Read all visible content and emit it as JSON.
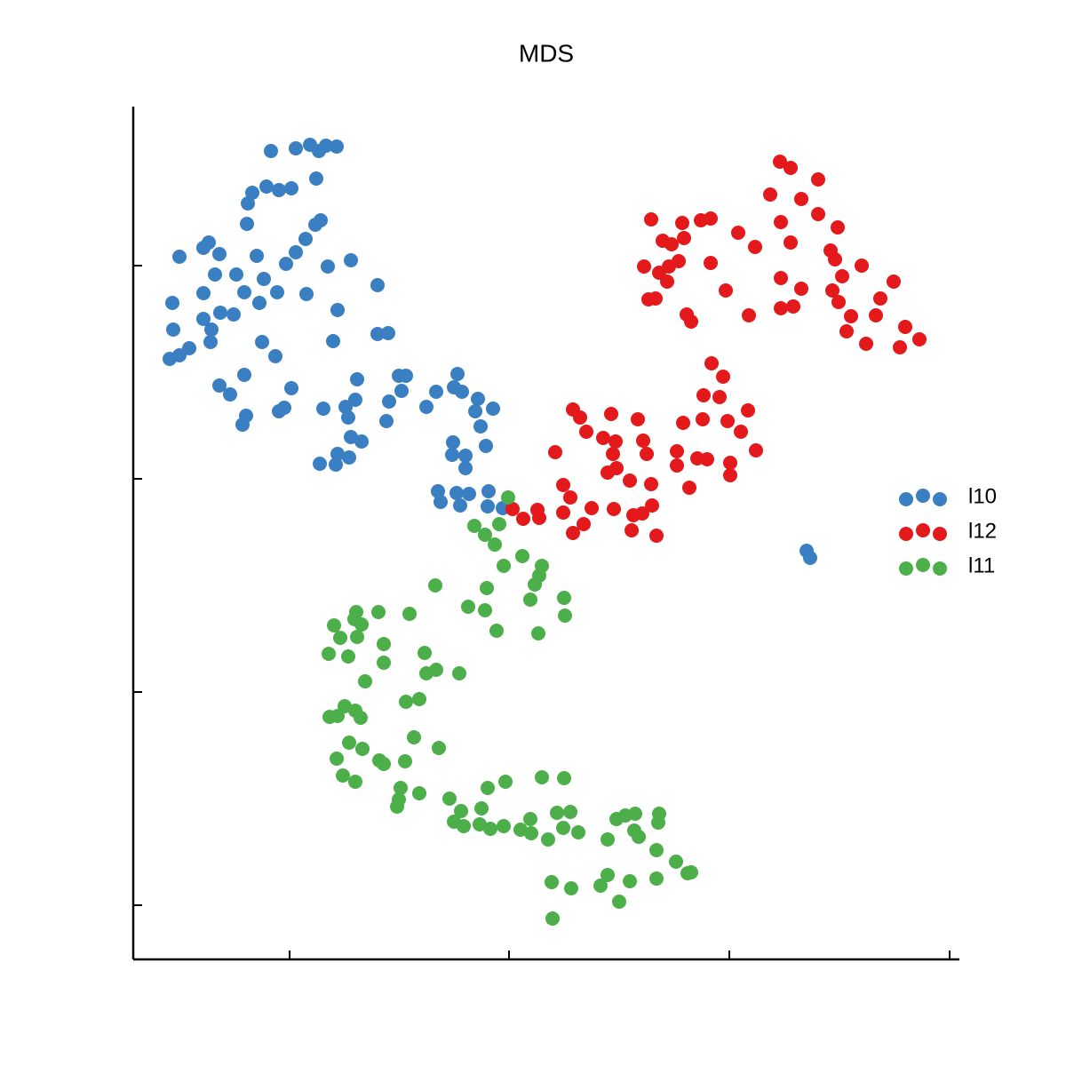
{
  "chart_data": {
    "type": "scatter",
    "title": "MDS",
    "xlim": [
      150,
      1080
    ],
    "ylim": [
      120,
      1080
    ],
    "xticks": [
      326,
      573,
      821,
      1069
    ],
    "yticks": [
      181,
      421,
      661,
      901
    ],
    "legend": "right",
    "series": [
      {
        "name": "l10",
        "color": "#3a7fc1",
        "x": [
          305,
          333,
          349,
          359,
          367,
          379,
          356,
          284,
          300,
          314,
          328,
          279,
          278,
          361,
          355,
          344,
          333,
          322,
          235,
          229,
          247,
          202,
          289,
          369,
          395,
          242,
          266,
          297,
          229,
          275,
          312,
          345,
          425,
          194,
          292,
          248,
          263,
          229,
          238,
          380,
          195,
          213,
          202,
          191,
          237,
          295,
          310,
          375,
          425,
          437,
          275,
          247,
          259,
          328,
          402,
          449,
          457,
          515,
          452,
          491,
          511,
          520,
          538,
          400,
          389,
          364,
          438,
          480,
          535,
          555,
          277,
          273,
          320,
          314,
          392,
          435,
          541,
          395,
          407,
          510,
          547,
          380,
          393,
          360,
          378,
          509,
          524,
          524,
          493,
          514,
          528,
          550,
          496,
          518,
          549,
          566,
          908,
          912
        ],
        "values": [
          1030,
          1033,
          1037,
          1030,
          1036,
          1035,
          999,
          983,
          990,
          986,
          988,
          971,
          948,
          952,
          947,
          931,
          916,
          903,
          927,
          921,
          914,
          911,
          912,
          900,
          907,
          891,
          891,
          886,
          870,
          871,
          871,
          869,
          879,
          859,
          859,
          848,
          846,
          841,
          829,
          851,
          829,
          808,
          800,
          796,
          815,
          815,
          799,
          816,
          824,
          825,
          778,
          766,
          756,
          763,
          773,
          777,
          777,
          779,
          760,
          759,
          764,
          759,
          751,
          750,
          742,
          740,
          748,
          742,
          737,
          740,
          732,
          722,
          741,
          737,
          730,
          726,
          720,
          708,
          703,
          702,
          698,
          689,
          685,
          678,
          677,
          688,
          687,
          673,
          647,
          645,
          644,
          647,
          635,
          631,
          630,
          628,
          580,
          572
        ]
      },
      {
        "name": "l12",
        "color": "#e3191c",
        "x": [
          878,
          890,
          921,
          867,
          902,
          733,
          768,
          789,
          800,
          921,
          879,
          943,
          831,
          746,
          756,
          770,
          850,
          890,
          935,
          940,
          725,
          742,
          753,
          764,
          800,
          970,
          948,
          1006,
          751,
          879,
          902,
          817,
          937,
          944,
          991,
          730,
          738,
          958,
          986,
          773,
          778,
          843,
          879,
          893,
          1019,
          953,
          975,
          1035,
          1013,
          801,
          814,
          792,
          810,
          819,
          842,
          645,
          653,
          688,
          718,
          660,
          679,
          693,
          724,
          728,
          769,
          791,
          834,
          762,
          851,
          625,
          690,
          785,
          796,
          822,
          762,
          694,
          684,
          709,
          733,
          776,
          822,
          634,
          642,
          589,
          605,
          577,
          607,
          634,
          666,
          691,
          713,
          723,
          734,
          657,
          645,
          711,
          739
        ],
        "values": [
          1018,
          1011,
          998,
          981,
          976,
          953,
          949,
          952,
          954,
          959,
          950,
          944,
          938,
          929,
          925,
          932,
          922,
          927,
          918,
          908,
          900,
          893,
          900,
          906,
          904,
          901,
          889,
          883,
          883,
          887,
          875,
          873,
          873,
          860,
          864,
          863,
          864,
          844,
          845,
          846,
          838,
          845,
          853,
          855,
          832,
          827,
          813,
          818,
          809,
          791,
          776,
          755,
          753,
          726,
          738,
          739,
          730,
          734,
          728,
          714,
          707,
          703,
          704,
          689,
          724,
          728,
          714,
          692,
          693,
          691,
          689,
          684,
          683,
          679,
          676,
          673,
          668,
          659,
          655,
          651,
          665,
          654,
          640,
          616,
          626,
          627,
          617,
          623,
          628,
          627,
          620,
          622,
          631,
          610,
          600,
          603,
          597
        ]
      },
      {
        "name": "l11",
        "color": "#4daf4a",
        "x": [
          572,
          534,
          546,
          562,
          557,
          588,
          610,
          607,
          567,
          602,
          490,
          548,
          635,
          597,
          527,
          546,
          636,
          461,
          426,
          401,
          376,
          399,
          407,
          402,
          383,
          559,
          606,
          432,
          478,
          370,
          392,
          432,
          480,
          491,
          517,
          411,
          457,
          472,
          388,
          400,
          406,
          371,
          380,
          466,
          393,
          408,
          494,
          379,
          427,
          432,
          456,
          386,
          400,
          451,
          472,
          449,
          549,
          569,
          610,
          635,
          447,
          506,
          519,
          542,
          511,
          522,
          540,
          552,
          567,
          597,
          586,
          598,
          627,
          642,
          617,
          634,
          651,
          694,
          704,
          715,
          742,
          741,
          684,
          714,
          719,
          739,
          761,
          774,
          778,
          621,
          643,
          684,
          676,
          709,
          739,
          697,
          622
        ],
        "values": [
          640,
          608,
          598,
          610,
          587,
          574,
          563,
          552,
          563,
          542,
          541,
          538,
          527,
          525,
          517,
          513,
          507,
          509,
          511,
          511,
          496,
          503,
          497,
          483,
          482,
          490,
          487,
          475,
          465,
          464,
          461,
          454,
          442,
          446,
          442,
          433,
          410,
          413,
          405,
          400,
          392,
          393,
          394,
          370,
          364,
          357,
          358,
          346,
          344,
          340,
          343,
          327,
          320,
          313,
          307,
          300,
          313,
          320,
          325,
          324,
          292,
          301,
          287,
          290,
          275,
          270,
          272,
          267,
          270,
          278,
          266,
          262,
          285,
          286,
          255,
          268,
          263,
          278,
          282,
          284,
          284,
          274,
          255,
          265,
          258,
          243,
          230,
          217,
          218,
          207,
          200,
          215,
          203,
          208,
          211,
          185,
          166
        ]
      }
    ]
  }
}
